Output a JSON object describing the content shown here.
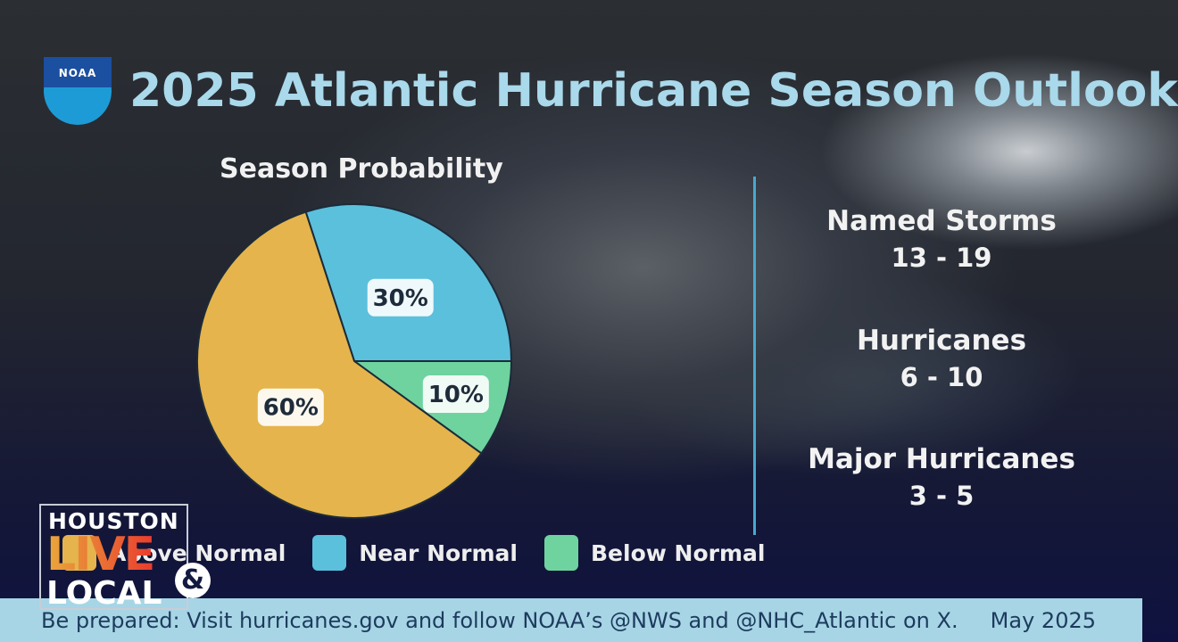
{
  "header": {
    "title": "2025 Atlantic Hurricane Season Outlook",
    "logo_text": "NOAA"
  },
  "chart_data": {
    "type": "pie",
    "title": "Season Probability",
    "categories": [
      "Near Normal",
      "Below Normal",
      "Above Normal"
    ],
    "values": [
      30,
      10,
      60
    ],
    "labels": [
      "30%",
      "10%",
      "60%"
    ],
    "colors": [
      "#5bc0dc",
      "#6fd3a0",
      "#e5b44c"
    ],
    "legend": [
      "Above Normal",
      "Near Normal",
      "Below Normal"
    ],
    "legend_position": "bottom"
  },
  "stats": [
    {
      "name": "Named Storms",
      "value": "13 - 19"
    },
    {
      "name": "Hurricanes",
      "value": "6 - 10"
    },
    {
      "name": "Major Hurricanes",
      "value": "3 - 5"
    }
  ],
  "footer": {
    "message": "Be prepared: Visit hurricanes.gov and follow NOAA’s @NWS and @NHC_Atlantic on X.",
    "date": "May 2025"
  },
  "station": {
    "line1": "HOUSTON",
    "line2": "LIVE",
    "line3": "LOCAL",
    "amp": "&"
  }
}
